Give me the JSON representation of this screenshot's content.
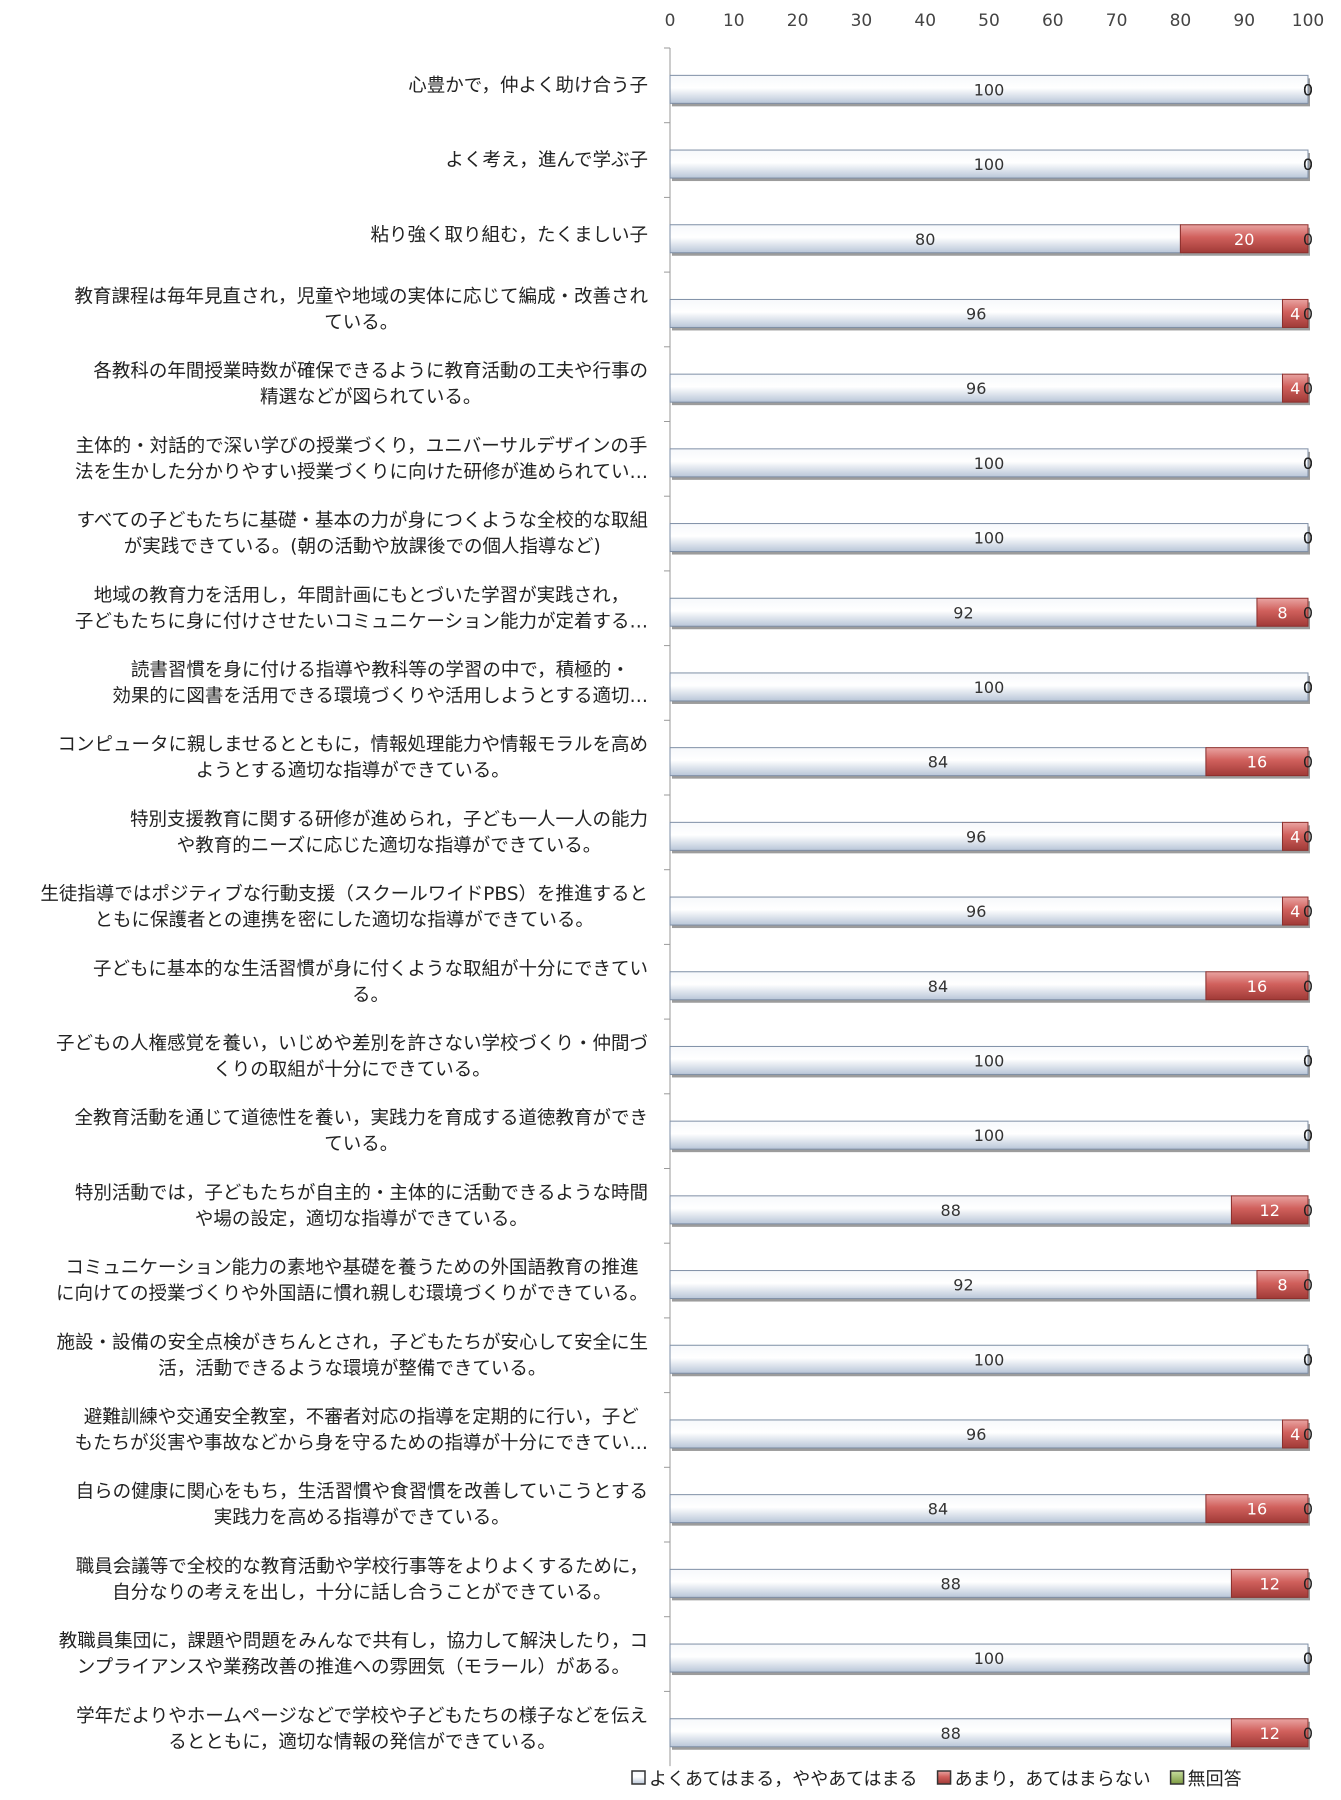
{
  "chart_data": {
    "type": "bar",
    "orientation": "horizontal",
    "stacked": true,
    "xlim": [
      0,
      100
    ],
    "x_ticks": [
      "0",
      "10",
      "20",
      "30",
      "40",
      "50",
      "60",
      "70",
      "80",
      "90",
      "100"
    ],
    "x_axis_position": "top",
    "grid": false,
    "legend_position": "bottom-right",
    "categories": [
      "心豊かで，仲よく助け合う子",
      "よく考え，進んで学ぶ子",
      "粘り強く取り組む，たくましい子",
      "教育課程は毎年見直され，児童や地域の実体に応じて編成・改善されている。",
      "各教科の年間授業時数が確保できるように教育活動の工夫や行事の精選などが図られている。",
      "主体的・対話的で深い学びの授業づくり，ユニバーサルデザインの手法を生かした分かりやすい授業づくりに向けた研修が進められてい…",
      "すべての子どもたちに基礎・基本の力が身につくような全校的な取組が実践できている。(朝の活動や放課後での個人指導など)",
      "地域の教育力を活用し，年間計画にもとづいた学習が実践され，子どもたちに身に付けさせたいコミュニケーション能力が定着する…",
      "読書習慣を身に付ける指導や教科等の学習の中で，積極的・効果的に図書を活用できる環境づくりや活用しようとする適切…",
      "コンピュータに親しませるとともに，情報処理能力や情報モラルを高めようとする適切な指導ができている。",
      "特別支援教育に関する研修が進められ，子ども一人一人の能力や教育的ニーズに応じた適切な指導ができている。",
      "生徒指導ではポジティブな行動支援（スクールワイドPBS）を推進するとともに保護者との連携を密にした適切な指導ができている。",
      "子どもに基本的な生活習慣が身に付くような取組が十分にできている。",
      "子どもの人権感覚を養い，いじめや差別を許さない学校づくり・仲間づくりの取組が十分にできている。",
      "全教育活動を通じて道徳性を養い，実践力を育成する道徳教育ができている。",
      "特別活動では，子どもたちが自主的・主体的に活動できるような時間や場の設定，適切な指導ができている。",
      "コミュニケーション能力の素地や基礎を養うための外国語教育の推進に向けての授業づくりや外国語に慣れ親しむ環境づくりができている。",
      "施設・設備の安全点検がきちんとされ，子どもたちが安心して安全に生活，活動できるような環境が整備できている。",
      "避難訓練や交通安全教室，不審者対応の指導を定期的に行い，子どもたちが災害や事故などから身を守るための指導が十分にできてい…",
      "自らの健康に関心をもち，生活習慣や食習慣を改善していこうとする実践力を高める指導ができている。",
      "職員会議等で全校的な教育活動や学校行事等をよりよくするために，自分なりの考えを出し，十分に話し合うことができている。",
      "教職員集団に，課題や問題をみんなで共有し，協力して解決したり，コンプライアンスや業務改善の推進への雰囲気（モラール）がある。",
      "学年だよりやホームページなどで学校や子どもたちの様子などを伝えるとともに，適切な情報の発信ができている。"
    ],
    "label_lines": [
      [
        "心豊かで，仲よく助け合う子"
      ],
      [
        "よく考え，進んで学ぶ子"
      ],
      [
        "粘り強く取り組む，たくましい子"
      ],
      [
        "教育課程は毎年見直され，児童や地域の実体に応じて編成・改善され",
        "ている。"
      ],
      [
        "各教科の年間授業時数が確保できるように教育活動の工夫や行事の",
        "精選などが図られている。"
      ],
      [
        "主体的・対話的で深い学びの授業づくり，ユニバーサルデザインの手",
        "法を生かした分かりやすい授業づくりに向けた研修が進められてい…"
      ],
      [
        "すべての子どもたちに基礎・基本の力が身につくような全校的な取組",
        "が実践できている。(朝の活動や放課後での個人指導など)"
      ],
      [
        "地域の教育力を活用し，年間計画にもとづいた学習が実践され，",
        "子どもたちに身に付けさせたいコミュニケーション能力が定着する…"
      ],
      [
        "読書習慣を身に付ける指導や教科等の学習の中で，積極的・",
        "効果的に図書を活用できる環境づくりや活用しようとする適切…"
      ],
      [
        "コンピュータに親しませるとともに，情報処理能力や情報モラルを高め",
        "ようとする適切な指導ができている。"
      ],
      [
        "特別支援教育に関する研修が進められ，子ども一人一人の能力",
        "や教育的ニーズに応じた適切な指導ができている。"
      ],
      [
        "生徒指導ではポジティブな行動支援（スクールワイドPBS）を推進すると",
        "ともに保護者との連携を密にした適切な指導ができている。"
      ],
      [
        "子どもに基本的な生活習慣が身に付くような取組が十分にできてい",
        "る。"
      ],
      [
        "子どもの人権感覚を養い，いじめや差別を許さない学校づくり・仲間づ",
        "くりの取組が十分にできている。"
      ],
      [
        "全教育活動を通じて道徳性を養い，実践力を育成する道徳教育ができ",
        "ている。"
      ],
      [
        "特別活動では，子どもたちが自主的・主体的に活動できるような時間",
        "や場の設定，適切な指導ができている。"
      ],
      [
        "コミュニケーション能力の素地や基礎を養うための外国語教育の推進",
        "に向けての授業づくりや外国語に慣れ親しむ環境づくりができている。"
      ],
      [
        "施設・設備の安全点検がきちんとされ，子どもたちが安心して安全に生",
        "活，活動できるような環境が整備できている。"
      ],
      [
        "避難訓練や交通安全教室，不審者対応の指導を定期的に行い，子ど",
        "もたちが災害や事故などから身を守るための指導が十分にできてい…"
      ],
      [
        "自らの健康に関心をもち，生活習慣や食習慣を改善していこうとする",
        "実践力を高める指導ができている。"
      ],
      [
        "職員会議等で全校的な教育活動や学校行事等をよりよくするために，",
        "自分なりの考えを出し，十分に話し合うことができている。"
      ],
      [
        "教職員集団に，課題や問題をみんなで共有し，協力して解決したり，コ",
        "ンプライアンスや業務改善の推進への雰囲気（モラール）がある。"
      ],
      [
        "学年だよりやホームページなどで学校や子どもたちの様子などを伝え",
        "るとともに，適切な情報の発信ができている。"
      ]
    ],
    "series": [
      {
        "name": "よくあてはまる，ややあてはまる",
        "color": "#dfe6f0",
        "label_color": "#333333",
        "values": [
          100,
          100,
          80,
          96,
          96,
          100,
          100,
          92,
          100,
          84,
          96,
          96,
          84,
          100,
          100,
          88,
          92,
          100,
          96,
          84,
          88,
          100,
          88
        ]
      },
      {
        "name": "あまり，あてはまらない",
        "color": "#c0504d",
        "label_color": "#ffffff",
        "values": [
          0,
          0,
          20,
          4,
          4,
          0,
          0,
          8,
          0,
          16,
          4,
          4,
          16,
          0,
          0,
          12,
          8,
          0,
          4,
          16,
          12,
          0,
          12
        ]
      },
      {
        "name": "無回答",
        "color": "#9bbb59",
        "label_color": "#333333",
        "values": [
          0,
          0,
          0,
          0,
          0,
          0,
          0,
          0,
          0,
          0,
          0,
          0,
          0,
          0,
          0,
          0,
          0,
          0,
          0,
          0,
          0,
          0,
          0
        ]
      }
    ]
  }
}
